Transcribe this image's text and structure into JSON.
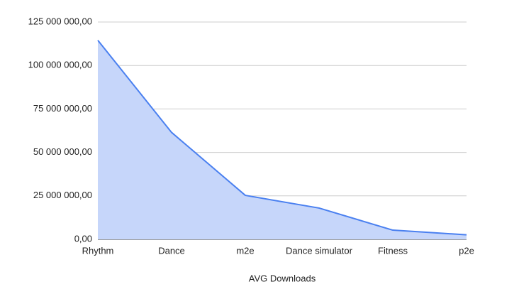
{
  "chart_data": {
    "type": "area",
    "x_label": "AVG Downloads",
    "categories": [
      "Rhythm",
      "Dance",
      "m2e",
      "Dance simulator",
      "Fitness",
      "p2e"
    ],
    "values": [
      114500000,
      61500000,
      25300000,
      18000000,
      5300000,
      2600000
    ],
    "color": "#4a80f0",
    "fill_color": "#c6d6fa",
    "ylim": [
      0,
      125000000
    ],
    "yticks": [
      {
        "value": 0,
        "label": "0,00"
      },
      {
        "value": 25000000,
        "label": "25 000 000,00"
      },
      {
        "value": 50000000,
        "label": "50 000 000,00"
      },
      {
        "value": 75000000,
        "label": "75 000 000,00"
      },
      {
        "value": 100000000,
        "label": "100 000 000,00"
      },
      {
        "value": 125000000,
        "label": "125 000 000,00"
      }
    ],
    "grid": true
  }
}
